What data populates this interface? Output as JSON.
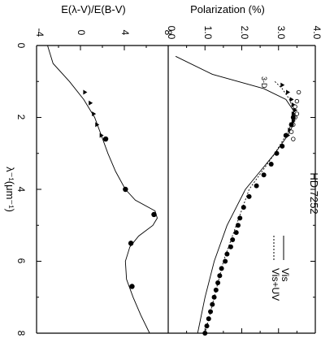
{
  "chart_data": [
    {
      "type": "scatter",
      "panel": "top",
      "ylabel": "Polarization (%)",
      "yticks": [
        "0.0",
        "1.0",
        "2.0",
        "3.0",
        "4.0"
      ],
      "ylim": [
        0,
        4
      ],
      "xlim": [
        0,
        8
      ],
      "annotation": "HD 7252",
      "label_3D": "3-D",
      "legend": {
        "entries": [
          "Vis",
          "Vis+UV"
        ]
      },
      "series": [
        {
          "name": "Vis",
          "x": [
            0.3,
            0.8,
            1.2,
            1.5,
            1.8,
            2.0,
            2.2,
            2.5,
            3.0,
            3.5,
            4.0,
            5.0,
            6.0,
            7.0,
            8.0
          ],
          "y": [
            0.2,
            1.2,
            2.6,
            3.2,
            3.4,
            3.45,
            3.4,
            3.25,
            2.9,
            2.5,
            2.1,
            1.6,
            1.25,
            1.0,
            0.8
          ]
        },
        {
          "name": "Vis+UV",
          "x": [
            1.0,
            1.2,
            1.5,
            1.8,
            2.0,
            2.2,
            2.5,
            3.0,
            3.5,
            4.0,
            5.0,
            6.0,
            7.0,
            8.0
          ],
          "y": [
            2.9,
            3.1,
            3.3,
            3.4,
            3.4,
            3.35,
            3.2,
            2.9,
            2.55,
            2.2,
            1.85,
            1.5,
            1.25,
            1.0
          ]
        },
        {
          "name": "triangles",
          "x": [
            1.1,
            1.3,
            1.5,
            1.65,
            1.8,
            1.9,
            2.0,
            2.1,
            2.2,
            2.35,
            2.5
          ],
          "y": [
            3.1,
            3.25,
            3.35,
            3.4,
            3.45,
            3.4,
            3.45,
            3.4,
            3.35,
            3.3,
            3.25
          ]
        },
        {
          "name": "open circles",
          "x": [
            1.3,
            1.55,
            1.7,
            1.9,
            2.0,
            2.2,
            2.4,
            2.6
          ],
          "y": [
            3.55,
            3.5,
            3.45,
            3.5,
            3.45,
            3.4,
            3.35,
            3.4
          ]
        },
        {
          "name": "filled circles",
          "x": [
            2.0,
            2.2,
            2.5,
            2.8,
            3.0,
            3.3,
            3.6,
            3.9,
            4.2,
            4.5,
            4.8,
            5.0,
            5.2,
            5.4,
            5.6,
            5.8,
            6.0,
            6.2,
            6.4,
            6.6,
            6.8,
            7.0,
            7.2,
            7.4,
            7.6,
            7.8,
            8.0
          ],
          "y": [
            3.4,
            3.35,
            3.2,
            3.1,
            2.95,
            2.8,
            2.6,
            2.4,
            2.2,
            2.05,
            1.95,
            1.9,
            1.85,
            1.75,
            1.7,
            1.6,
            1.55,
            1.45,
            1.4,
            1.35,
            1.3,
            1.25,
            1.2,
            1.15,
            1.1,
            1.05,
            1.0
          ]
        }
      ]
    },
    {
      "type": "scatter",
      "panel": "bottom",
      "ylabel": "E(λ-V)/E(B-V)",
      "yticks": [
        "-4",
        "0",
        "4",
        "8"
      ],
      "ylim": [
        -4,
        8
      ],
      "xlabel": "λ⁻¹(μm⁻¹)",
      "xticks": [
        "0",
        "2",
        "4",
        "6",
        "8"
      ],
      "xlim": [
        0,
        8
      ],
      "series": [
        {
          "name": "extinction curve",
          "x": [
            0.0,
            0.5,
            1.0,
            1.5,
            2.0,
            2.5,
            3.0,
            3.5,
            4.0,
            4.3,
            4.6,
            4.8,
            5.0,
            5.3,
            5.6,
            6.0,
            6.5,
            7.0,
            7.5,
            8.0
          ],
          "y": [
            -3.0,
            -2.5,
            -1.0,
            0.3,
            1.3,
            1.9,
            2.5,
            3.2,
            4.1,
            5.0,
            6.8,
            7.0,
            6.6,
            5.3,
            4.5,
            4.1,
            4.2,
            4.8,
            5.5,
            6.3
          ]
        },
        {
          "name": "triangles",
          "x": [
            1.3,
            1.6,
            1.9,
            2.2,
            2.5
          ],
          "y": [
            0.4,
            0.9,
            1.2,
            1.5,
            1.9
          ]
        },
        {
          "name": "filled circles",
          "x": [
            2.6,
            4.0,
            4.7,
            5.5,
            6.7
          ],
          "y": [
            2.3,
            4.1,
            6.7,
            4.6,
            4.7
          ]
        }
      ]
    }
  ]
}
